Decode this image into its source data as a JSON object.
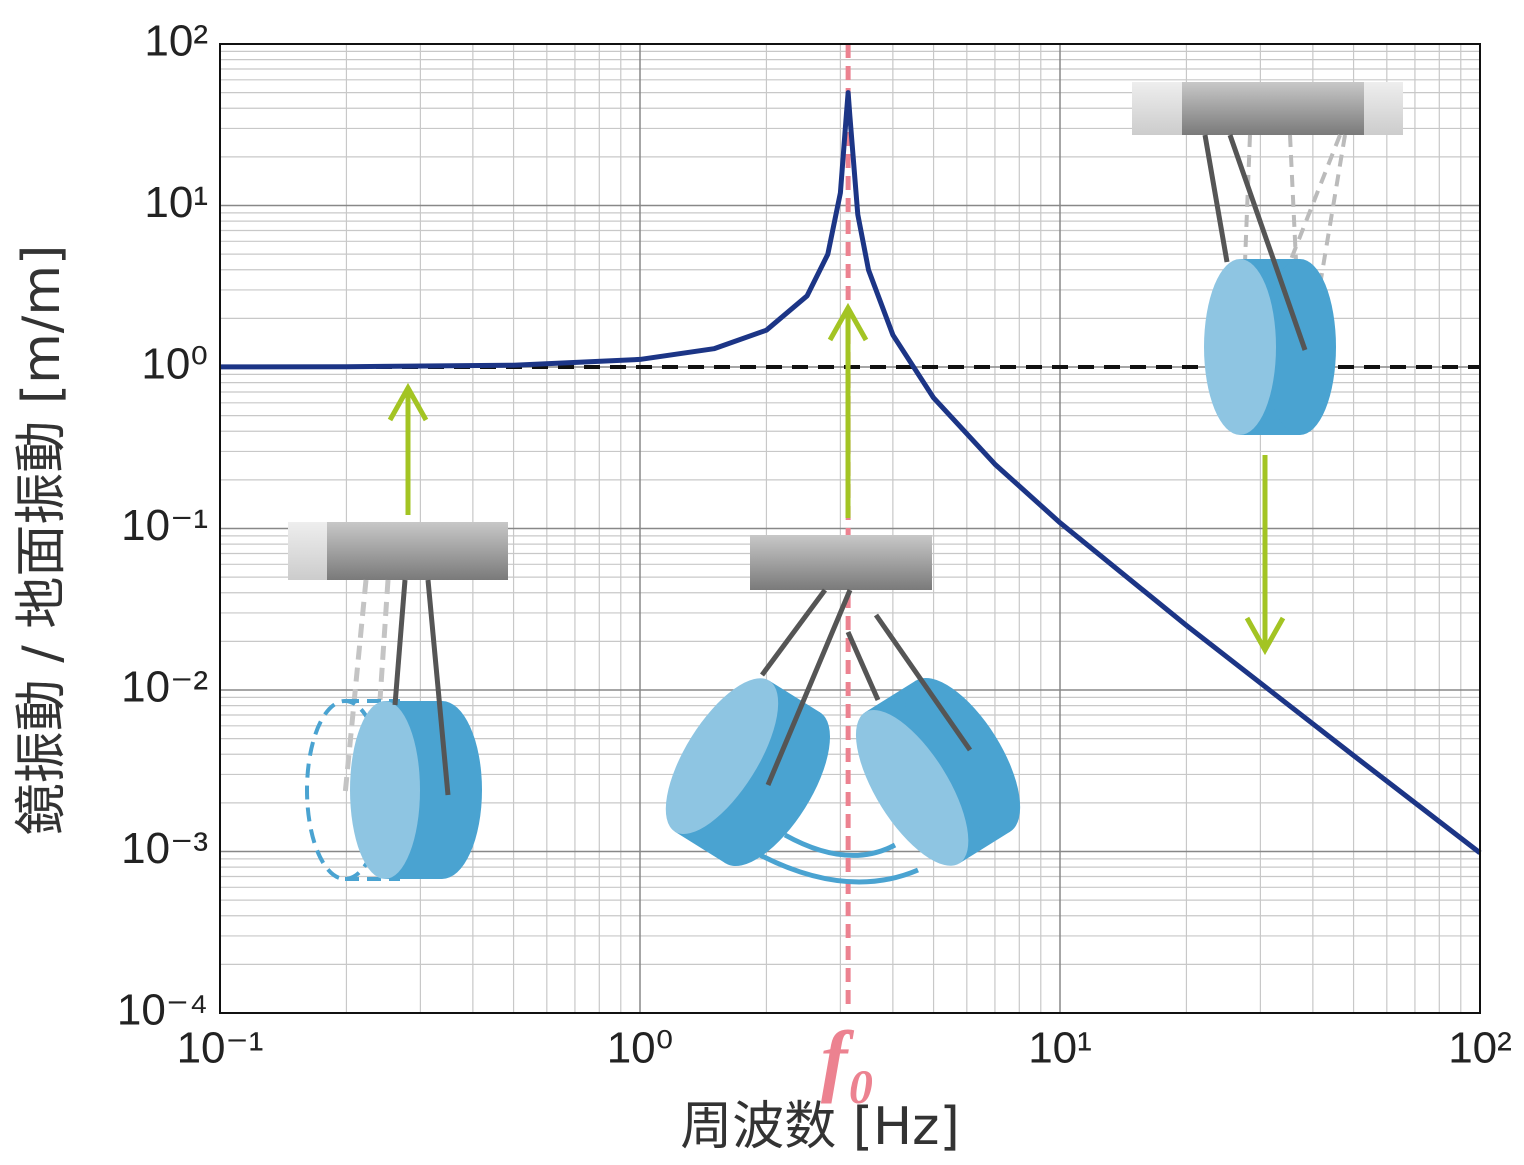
{
  "chart_data": {
    "type": "line",
    "x_label": "周波数 [Hz]",
    "y_label": "鏡振動 / 地面振動 [m/m]",
    "xscale": "log",
    "yscale": "log",
    "grid": true,
    "xlim": [
      0.1,
      100
    ],
    "ylim": [
      0.0001,
      100
    ],
    "xticks": [
      {
        "value": 0.1,
        "label": "10⁻¹"
      },
      {
        "value": 1,
        "label": "10⁰"
      },
      {
        "value": 10,
        "label": "10¹"
      },
      {
        "value": 100,
        "label": "10²"
      }
    ],
    "yticks": [
      {
        "value": 0.0001,
        "label": "10⁻⁴"
      },
      {
        "value": 0.001,
        "label": "10⁻³"
      },
      {
        "value": 0.01,
        "label": "10⁻²"
      },
      {
        "value": 0.1,
        "label": "10⁻¹"
      },
      {
        "value": 1,
        "label": "10⁰"
      },
      {
        "value": 10,
        "label": "10¹"
      },
      {
        "value": 100,
        "label": "10²"
      }
    ],
    "x": [
      0.1,
      0.2,
      0.5,
      1,
      1.5,
      2,
      2.5,
      2.8,
      3.0,
      3.1,
      3.13,
      3.16,
      3.3,
      3.5,
      4,
      5,
      7,
      10,
      20,
      50,
      100
    ],
    "series": [
      {
        "color": "#1c3586",
        "values": [
          1.001,
          1.004,
          1.026,
          1.114,
          1.298,
          1.69,
          2.76,
          4.99,
          11.97,
          36.5,
          50,
          35.8,
          8.8,
          3.99,
          1.58,
          0.644,
          0.25,
          0.1086,
          0.0251,
          0.00393,
          0.000981
        ]
      }
    ],
    "hlines": [
      {
        "value": 1,
        "color": "#111111"
      }
    ],
    "vlines": [
      {
        "value": 3.13,
        "color": "#ec8290",
        "label": "f₀"
      }
    ]
  }
}
